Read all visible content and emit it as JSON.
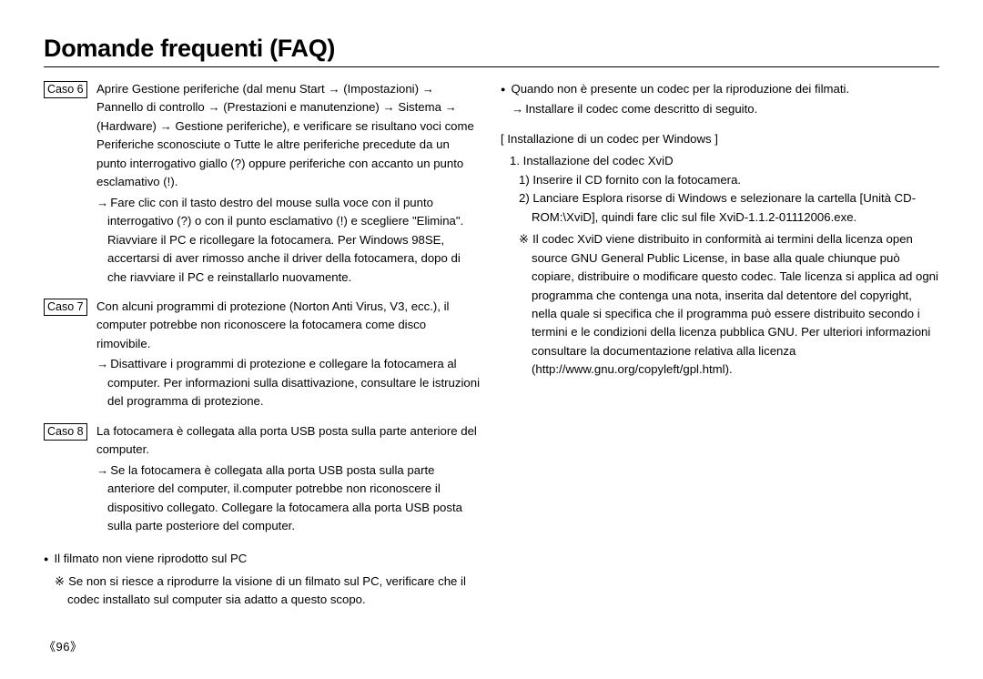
{
  "title": "Domande frequenti (FAQ)",
  "pageNumber": "《96》",
  "left": {
    "cases": [
      {
        "label": "Caso 6",
        "main": "Aprire Gestione periferiche (dal menu Start → (Impostazioni) → Pannello di controllo → (Prestazioni e manutenzione) → Sistema → (Hardware) → Gestione periferiche), e verificare se risultano voci come Periferiche sconosciute o Tutte le altre periferiche precedute da un punto interrogativo giallo (?) oppure periferiche con accanto un punto esclamativo (!).",
        "arrow": "Fare clic con il tasto destro del mouse sulla voce con il punto interrogativo (?) o con il punto esclamativo (!) e scegliere \"Elimina\". Riavviare il PC e ricollegare la fotocamera. Per Windows 98SE, accertarsi di aver rimosso anche il driver della fotocamera, dopo di che riavviare il PC e reinstallarlo nuovamente."
      },
      {
        "label": "Caso 7",
        "main": "Con alcuni programmi di protezione (Norton Anti Virus, V3, ecc.), il computer potrebbe non riconoscere la fotocamera come disco rimovibile.",
        "arrow": "Disattivare i programmi di protezione e collegare la fotocamera al computer. Per informazioni sulla disattivazione, consultare le istruzioni del programma di protezione."
      },
      {
        "label": "Caso 8",
        "main": "La fotocamera è collegata alla porta USB posta sulla parte anteriore del computer.",
        "arrow": "Se la fotocamera è collegata alla porta USB posta sulla parte anteriore del computer, il.computer potrebbe non riconoscere il dispositivo collegato. Collegare la fotocamera alla porta USB posta sulla parte posteriore del computer."
      }
    ],
    "bullet": "Il filmato non viene riprodotto sul PC",
    "bulletNote": "Se non si riesce a riprodurre la visione di un filmato sul PC, verificare che il codec installato sul computer sia adatto a questo scopo."
  },
  "right": {
    "bullet": "Quando non è presente un codec per la riproduzione dei filmati.",
    "bulletArrow": "Installare il codec come descritto di seguito.",
    "sectionHead": "[ Installazione di un codec per Windows ]",
    "install1": "1. Installazione del codec XviD",
    "install1a": "1) Inserire il CD fornito con la fotocamera.",
    "install1b": "2) Lanciare Esplora risorse di Windows e selezionare la cartella [Unità CD-ROM:\\XviD], quindi fare clic sul file XviD-1.1.2-01112006.exe.",
    "starNote": "Il codec XviD viene distribuito in conformità ai termini della licenza open source GNU General Public License, in base alla quale chiunque può copiare, distribuire o modificare questo codec. Tale licenza si applica ad ogni programma che contenga una nota, inserita dal detentore del copyright, nella quale si specifica che il programma può essere distribuito secondo i termini e le condizioni della licenza pubblica GNU. Per ulteriori informazioni consultare la documentazione relativa alla licenza (http://www.gnu.org/copyleft/gpl.html)."
  }
}
